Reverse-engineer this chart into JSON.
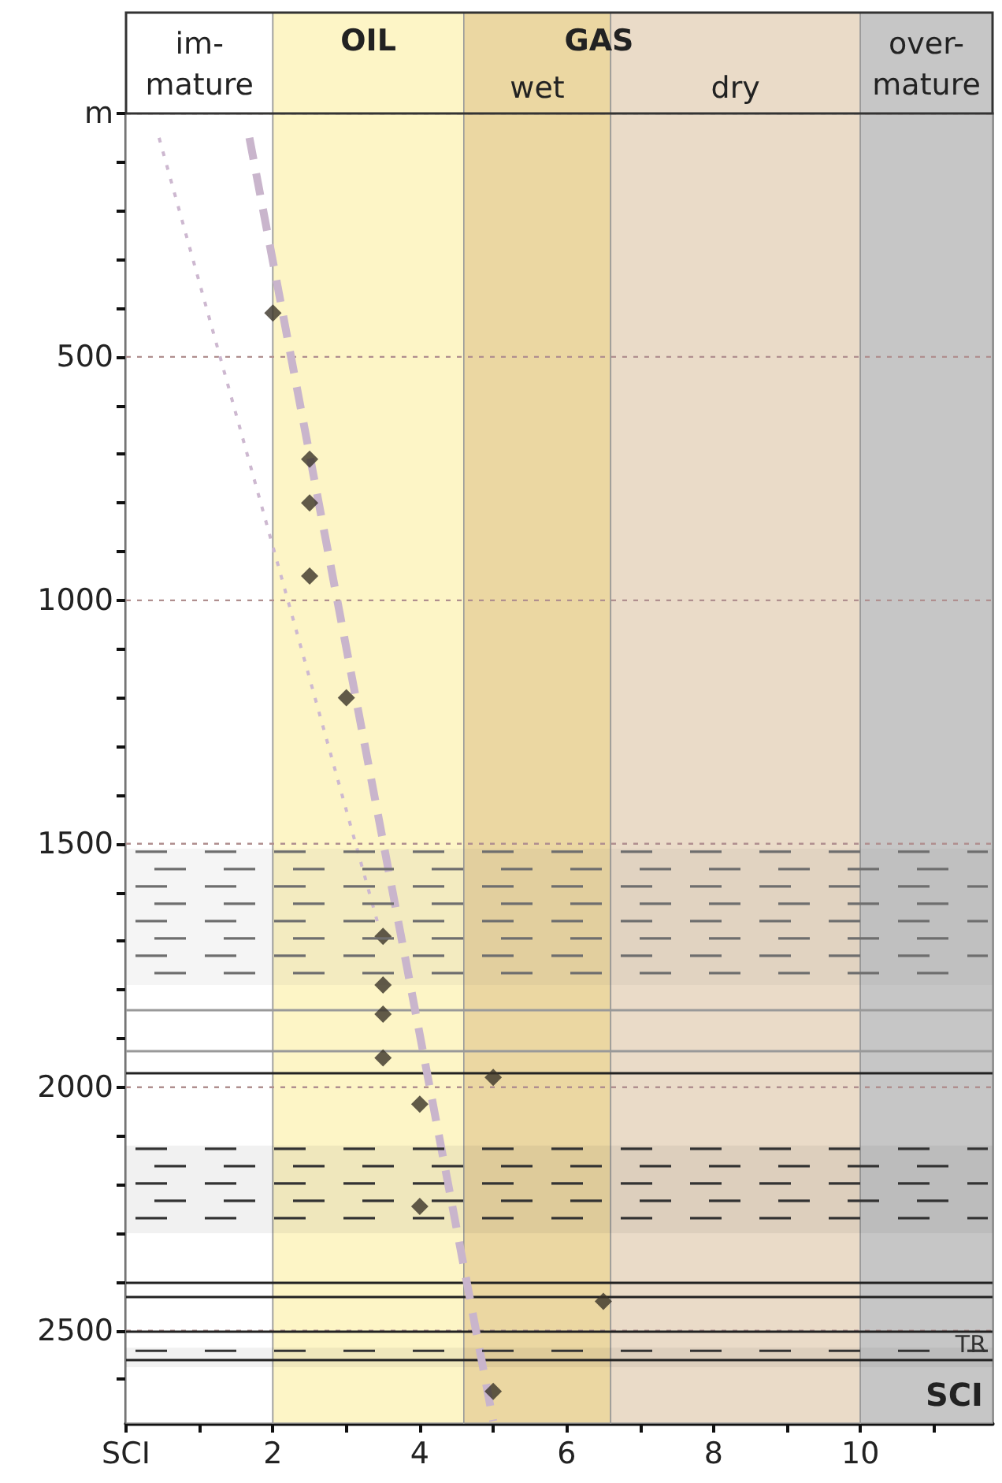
{
  "chart_data": {
    "type": "scatter",
    "xlim": [
      0,
      11.8
    ],
    "xticks": [
      {
        "value": 0,
        "label": "SCI"
      },
      {
        "value": 1,
        "label": null
      },
      2,
      {
        "value": 3,
        "label": null
      },
      4,
      {
        "value": 5,
        "label": null
      },
      6,
      {
        "value": 7,
        "label": null
      },
      8,
      {
        "value": 9,
        "label": null
      },
      10,
      {
        "value": 11,
        "label": null
      }
    ],
    "ylim": [
      2690,
      0
    ],
    "yticks": [
      {
        "value": 0,
        "label": "m"
      },
      {
        "value": 100,
        "label": null
      },
      {
        "value": 200,
        "label": null
      },
      {
        "value": 300,
        "label": null
      },
      {
        "value": 400,
        "label": null
      },
      500,
      {
        "value": 600,
        "label": null
      },
      {
        "value": 700,
        "label": null
      },
      {
        "value": 800,
        "label": null
      },
      {
        "value": 900,
        "label": null
      },
      1000,
      {
        "value": 1100,
        "label": null
      },
      {
        "value": 1200,
        "label": null
      },
      {
        "value": 1300,
        "label": null
      },
      {
        "value": 1400,
        "label": null
      },
      1500,
      {
        "value": 1600,
        "label": null
      },
      {
        "value": 1700,
        "label": null
      },
      {
        "value": 1800,
        "label": null
      },
      {
        "value": 1900,
        "label": null
      },
      2000,
      {
        "value": 2100,
        "label": null
      },
      {
        "value": 2200,
        "label": null
      },
      {
        "value": 2300,
        "label": null
      },
      {
        "value": 2400,
        "label": null
      },
      2500,
      {
        "value": 2600,
        "label": null
      }
    ],
    "grid": "y",
    "marker": "diamond",
    "series": [
      {
        "type": "scatter",
        "color": "#3a3328",
        "x": [
          2.0,
          2.5,
          2.5,
          2.5,
          3.0,
          3.5,
          3.5,
          3.5,
          3.5,
          5.0,
          4.0,
          4.0,
          6.5,
          5.0
        ],
        "values": [
          410,
          710,
          800,
          950,
          1200,
          1690,
          1790,
          1850,
          1940,
          1980,
          2035,
          2245,
          2440,
          2625
        ]
      },
      {
        "type": "line",
        "marker": "none",
        "line_style": "dashed",
        "color": "#c9b5cc",
        "x": [
          1.68,
          5.0
        ],
        "values": [
          50,
          2686
        ]
      },
      {
        "type": "line",
        "marker": "none",
        "line_style": "dotted",
        "color": "#cdb8d0",
        "x": [
          0.45,
          3.45
        ],
        "values": [
          50,
          1675
        ]
      }
    ],
    "bands": [
      {
        "axis": "x",
        "from": 0,
        "to": 2,
        "label": "im-\nmature",
        "color": "#ffffff"
      },
      {
        "axis": "x",
        "from": 2,
        "to": 4.6,
        "label": "OIL",
        "color": "#fdf5c6"
      },
      {
        "axis": "x",
        "from": 4.6,
        "to": 6.6,
        "label": "wet",
        "color": "#ebd7a2"
      },
      {
        "axis": "x",
        "from": 6.6,
        "to": 10,
        "label": "dry",
        "color": "#eadbc8"
      },
      {
        "axis": "x",
        "from": 10,
        "to": 11.8,
        "label": "over-\nmature",
        "color": "#c6c6c6"
      },
      {
        "axis": "y",
        "from": 1510,
        "to": 1790,
        "label": null,
        "color": "#6e6e6e"
      },
      {
        "axis": "y",
        "from": 2120,
        "to": 2300,
        "label": null,
        "color": "#333333"
      },
      {
        "axis": "y",
        "from": 2535,
        "to": 2575,
        "label": "TR",
        "color": "#333333"
      }
    ],
    "ref_lines": [
      {
        "axis": "y",
        "value": 1840,
        "label": null,
        "color": "#999999"
      },
      {
        "axis": "y",
        "value": 1925,
        "label": null,
        "color": "#999999"
      },
      {
        "axis": "y",
        "value": 1970,
        "label": null,
        "color": "#222222"
      },
      {
        "axis": "y",
        "value": 2400,
        "label": null,
        "color": "#222222"
      },
      {
        "axis": "y",
        "value": 2430,
        "label": null,
        "color": "#222222"
      },
      {
        "axis": "y",
        "value": 2500,
        "label": null,
        "color": "#222222"
      },
      {
        "axis": "y",
        "value": 2560,
        "label": null,
        "color": "#222222"
      }
    ],
    "annotations": [
      "GAS",
      "SCI"
    ]
  }
}
